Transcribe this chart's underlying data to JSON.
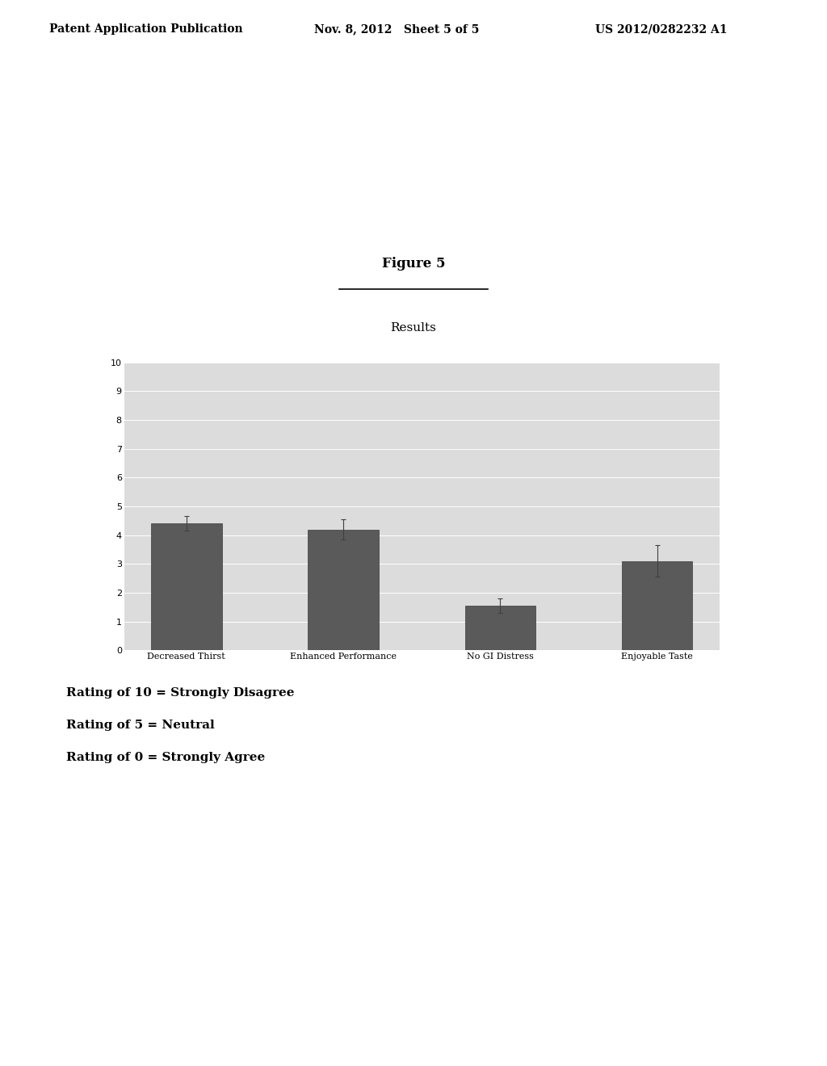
{
  "header_left": "Patent Application Publication",
  "header_mid": "Nov. 8, 2012   Sheet 5 of 5",
  "header_right": "US 2012/0282232 A1",
  "figure_title": "Figure 5",
  "chart_title": "Results",
  "categories": [
    "Decreased Thirst",
    "Enhanced Performance",
    "No GI Distress",
    "Enjoyable Taste"
  ],
  "values": [
    4.4,
    4.2,
    1.55,
    3.1
  ],
  "errors": [
    0.25,
    0.35,
    0.25,
    0.55
  ],
  "ylim": [
    0,
    10
  ],
  "yticks": [
    0,
    1,
    2,
    3,
    4,
    5,
    6,
    7,
    8,
    9,
    10
  ],
  "bar_color": "#5a5a5a",
  "bar_edgecolor": "#3a3a3a",
  "chart_bg_color": "#dcdcdc",
  "legend_lines": [
    "Rating of 10 = Strongly Disagree",
    "Rating of 5 = Neutral",
    "Rating of 0 = Strongly Agree"
  ],
  "background_color": "#ffffff",
  "header_fontsize": 10,
  "figure_title_fontsize": 12,
  "chart_title_fontsize": 11,
  "tick_fontsize": 8,
  "legend_fontsize": 11
}
